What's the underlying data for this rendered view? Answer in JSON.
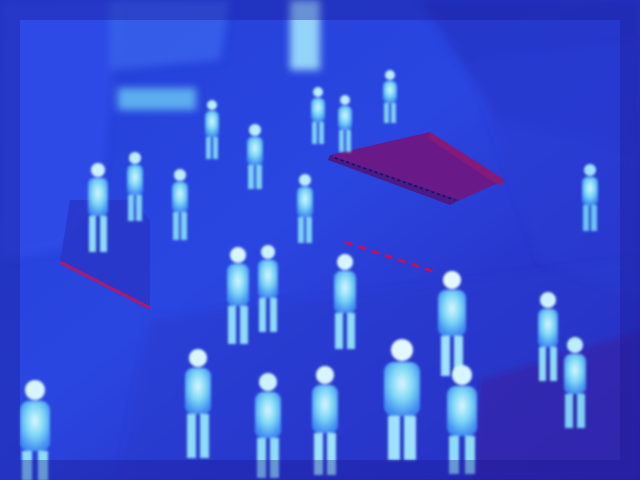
{
  "image": {
    "kind": "thermal-camera-frame",
    "palette": {
      "cold": "#1c1fa8",
      "cool": "#2f52ea",
      "mid": "#3f8cf2",
      "warm": "#7fd8f5",
      "hot": "#d8f6ff",
      "roof_shadow": "#5a1c8c",
      "roof_light": "#7a1a7e",
      "accent_red": "#c01060"
    },
    "subjects": [
      {
        "id": "p1"
      },
      {
        "id": "p2"
      },
      {
        "id": "p3"
      },
      {
        "id": "p4"
      },
      {
        "id": "p5"
      },
      {
        "id": "p6"
      },
      {
        "id": "p7"
      },
      {
        "id": "p8"
      },
      {
        "id": "p9"
      },
      {
        "id": "p10"
      },
      {
        "id": "p11"
      },
      {
        "id": "p12"
      },
      {
        "id": "p13"
      },
      {
        "id": "p14"
      },
      {
        "id": "p15"
      },
      {
        "id": "p16"
      },
      {
        "id": "p17"
      },
      {
        "id": "p18"
      },
      {
        "id": "p19"
      },
      {
        "id": "p20"
      }
    ]
  }
}
